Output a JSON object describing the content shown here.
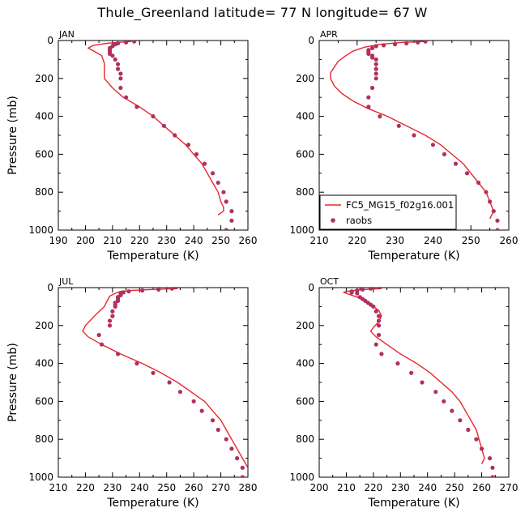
{
  "figure_title": "Thule_Greenland   latitude= 77 N longitude= 67 W",
  "colors": {
    "model": "#e8262e",
    "obs": "#b03060",
    "axis": "#000000"
  },
  "chart_data": [
    {
      "type": "line",
      "panel_label": "JAN",
      "xlabel": "Temperature (K)",
      "ylabel": "Pressure (mb)",
      "xlim": [
        190,
        260
      ],
      "ylim": [
        1000,
        0
      ],
      "xticks": [
        190,
        200,
        210,
        220,
        230,
        240,
        250,
        260
      ],
      "yticks": [
        0,
        200,
        400,
        600,
        800,
        1000
      ],
      "series": [
        {
          "mode": "line",
          "points": [
            [
              217,
              5
            ],
            [
              212,
              10
            ],
            [
              208,
              15
            ],
            [
              203,
              25
            ],
            [
              201,
              40
            ],
            [
              203,
              55
            ],
            [
              206,
              80
            ],
            [
              207,
              120
            ],
            [
              207,
              160
            ],
            [
              207,
              200
            ],
            [
              210,
              250
            ],
            [
              214,
              300
            ],
            [
              220,
              350
            ],
            [
              225,
              400
            ],
            [
              229,
              450
            ],
            [
              233,
              500
            ],
            [
              237,
              550
            ],
            [
              240,
              600
            ],
            [
              243,
              650
            ],
            [
              245,
              700
            ],
            [
              247,
              750
            ],
            [
              249,
              800
            ],
            [
              250,
              850
            ],
            [
              251,
              880
            ],
            [
              251,
              900
            ],
            [
              249,
              920
            ]
          ]
        },
        {
          "mode": "points",
          "points": [
            [
              218,
              5
            ],
            [
              215,
              10
            ],
            [
              212,
              15
            ],
            [
              211,
              20
            ],
            [
              210,
              30
            ],
            [
              209,
              40
            ],
            [
              209,
              50
            ],
            [
              209,
              60
            ],
            [
              209,
              70
            ],
            [
              210,
              80
            ],
            [
              211,
              100
            ],
            [
              212,
              125
            ],
            [
              212,
              150
            ],
            [
              213,
              175
            ],
            [
              213,
              200
            ],
            [
              213,
              250
            ],
            [
              215,
              300
            ],
            [
              219,
              350
            ],
            [
              225,
              400
            ],
            [
              229,
              450
            ],
            [
              233,
              500
            ],
            [
              238,
              550
            ],
            [
              241,
              600
            ],
            [
              244,
              650
            ],
            [
              247,
              700
            ],
            [
              249,
              750
            ],
            [
              251,
              800
            ],
            [
              252,
              850
            ],
            [
              254,
              900
            ],
            [
              254,
              950
            ],
            [
              252,
              1000
            ]
          ]
        }
      ]
    },
    {
      "type": "line",
      "panel_label": "APR",
      "xlabel": "Temperature (K)",
      "ylabel": "",
      "xlim": [
        210,
        260
      ],
      "ylim": [
        1000,
        0
      ],
      "xticks": [
        210,
        220,
        230,
        240,
        250,
        260
      ],
      "yticks": [
        0,
        200,
        400,
        600,
        800,
        1000
      ],
      "legend": {
        "placement": "lower-left-inside",
        "entries": [
          "FC5_MG15_f02g16.001",
          "raobs"
        ]
      },
      "series": [
        {
          "name": "FC5_MG15_f02g16.001",
          "mode": "line",
          "points": [
            [
              238,
              5
            ],
            [
              232,
              10
            ],
            [
              226,
              20
            ],
            [
              222,
              35
            ],
            [
              219,
              55
            ],
            [
              217,
              80
            ],
            [
              215,
              110
            ],
            [
              214,
              140
            ],
            [
              213,
              170
            ],
            [
              213,
              200
            ],
            [
              214,
              240
            ],
            [
              216,
              280
            ],
            [
              219,
              320
            ],
            [
              223,
              360
            ],
            [
              228,
              400
            ],
            [
              233,
              450
            ],
            [
              238,
              500
            ],
            [
              242,
              550
            ],
            [
              245,
              600
            ],
            [
              248,
              650
            ],
            [
              250,
              700
            ],
            [
              252,
              750
            ],
            [
              254,
              800
            ],
            [
              255,
              850
            ],
            [
              256,
              900
            ],
            [
              255,
              940
            ]
          ]
        },
        {
          "name": "raobs",
          "mode": "points",
          "points": [
            [
              238,
              5
            ],
            [
              236,
              10
            ],
            [
              233,
              15
            ],
            [
              230,
              20
            ],
            [
              227,
              25
            ],
            [
              225,
              30
            ],
            [
              224,
              40
            ],
            [
              223,
              50
            ],
            [
              223,
              60
            ],
            [
              223,
              70
            ],
            [
              224,
              80
            ],
            [
              224,
              90
            ],
            [
              225,
              100
            ],
            [
              225,
              125
            ],
            [
              225,
              150
            ],
            [
              225,
              175
            ],
            [
              225,
              200
            ],
            [
              224,
              250
            ],
            [
              223,
              300
            ],
            [
              223,
              350
            ],
            [
              226,
              400
            ],
            [
              231,
              450
            ],
            [
              235,
              500
            ],
            [
              240,
              550
            ],
            [
              243,
              600
            ],
            [
              246,
              650
            ],
            [
              249,
              700
            ],
            [
              252,
              750
            ],
            [
              254,
              800
            ],
            [
              255,
              850
            ],
            [
              256,
              900
            ],
            [
              257,
              950
            ],
            [
              257,
              1000
            ]
          ]
        }
      ]
    },
    {
      "type": "line",
      "panel_label": "JUL",
      "xlabel": "Temperature (K)",
      "ylabel": "Pressure (mb)",
      "xlim": [
        210,
        280
      ],
      "ylim": [
        1000,
        0
      ],
      "xticks": [
        210,
        220,
        230,
        240,
        250,
        260,
        270,
        280
      ],
      "yticks": [
        0,
        200,
        400,
        600,
        800,
        1000
      ],
      "series": [
        {
          "mode": "line",
          "points": [
            [
              254,
              5
            ],
            [
              245,
              10
            ],
            [
              237,
              15
            ],
            [
              233,
              20
            ],
            [
              231,
              30
            ],
            [
              229,
              45
            ],
            [
              228,
              70
            ],
            [
              227,
              100
            ],
            [
              224,
              140
            ],
            [
              222,
              170
            ],
            [
              220,
              200
            ],
            [
              219,
              230
            ],
            [
              221,
              260
            ],
            [
              226,
              300
            ],
            [
              233,
              350
            ],
            [
              241,
              400
            ],
            [
              248,
              450
            ],
            [
              254,
              500
            ],
            [
              259,
              550
            ],
            [
              264,
              600
            ],
            [
              267,
              650
            ],
            [
              270,
              700
            ],
            [
              272,
              750
            ],
            [
              274,
              800
            ],
            [
              276,
              850
            ],
            [
              278,
              900
            ],
            [
              280,
              950
            ]
          ]
        },
        {
          "mode": "points",
          "points": [
            [
              252,
              5
            ],
            [
              247,
              10
            ],
            [
              241,
              15
            ],
            [
              236,
              20
            ],
            [
              234,
              25
            ],
            [
              233,
              30
            ],
            [
              233,
              40
            ],
            [
              232,
              50
            ],
            [
              232,
              60
            ],
            [
              232,
              70
            ],
            [
              231,
              80
            ],
            [
              231,
              90
            ],
            [
              231,
              100
            ],
            [
              230,
              125
            ],
            [
              230,
              150
            ],
            [
              229,
              175
            ],
            [
              229,
              200
            ],
            [
              225,
              250
            ],
            [
              226,
              300
            ],
            [
              232,
              350
            ],
            [
              239,
              400
            ],
            [
              245,
              450
            ],
            [
              251,
              500
            ],
            [
              255,
              550
            ],
            [
              260,
              600
            ],
            [
              263,
              650
            ],
            [
              267,
              700
            ],
            [
              269,
              750
            ],
            [
              272,
              800
            ],
            [
              274,
              850
            ],
            [
              276,
              900
            ],
            [
              278,
              950
            ],
            [
              278,
              1000
            ]
          ]
        }
      ]
    },
    {
      "type": "line",
      "panel_label": "OCT",
      "xlabel": "Temperature (K)",
      "ylabel": "",
      "xlim": [
        200,
        270
      ],
      "ylim": [
        1000,
        0
      ],
      "xticks": [
        200,
        210,
        220,
        230,
        240,
        250,
        260,
        270
      ],
      "yticks": [
        0,
        200,
        400,
        600,
        800,
        1000
      ],
      "series": [
        {
          "mode": "line",
          "points": [
            [
              223,
              5
            ],
            [
              217,
              10
            ],
            [
              213,
              15
            ],
            [
              210,
              20
            ],
            [
              209,
              25
            ],
            [
              211,
              35
            ],
            [
              214,
              50
            ],
            [
              217,
              70
            ],
            [
              220,
              100
            ],
            [
              222,
              120
            ],
            [
              223,
              150
            ],
            [
              222,
              180
            ],
            [
              220,
              210
            ],
            [
              219,
              230
            ],
            [
              221,
              260
            ],
            [
              225,
              300
            ],
            [
              230,
              350
            ],
            [
              236,
              400
            ],
            [
              241,
              450
            ],
            [
              245,
              500
            ],
            [
              249,
              550
            ],
            [
              252,
              600
            ],
            [
              254,
              650
            ],
            [
              256,
              700
            ],
            [
              258,
              750
            ],
            [
              259,
              800
            ],
            [
              260,
              850
            ],
            [
              261,
              900
            ],
            [
              260,
              930
            ]
          ]
        },
        {
          "mode": "points",
          "points": [
            [
              219,
              5
            ],
            [
              216,
              10
            ],
            [
              214,
              15
            ],
            [
              212,
              20
            ],
            [
              212,
              25
            ],
            [
              214,
              30
            ],
            [
              215,
              50
            ],
            [
              216,
              60
            ],
            [
              217,
              70
            ],
            [
              218,
              80
            ],
            [
              219,
              90
            ],
            [
              220,
              100
            ],
            [
              221,
              125
            ],
            [
              222,
              150
            ],
            [
              222,
              175
            ],
            [
              222,
              200
            ],
            [
              222,
              250
            ],
            [
              221,
              300
            ],
            [
              223,
              350
            ],
            [
              229,
              400
            ],
            [
              234,
              450
            ],
            [
              238,
              500
            ],
            [
              243,
              550
            ],
            [
              246,
              600
            ],
            [
              249,
              650
            ],
            [
              252,
              700
            ],
            [
              255,
              750
            ],
            [
              258,
              800
            ],
            [
              260,
              850
            ],
            [
              263,
              900
            ],
            [
              264,
              950
            ],
            [
              264,
              1000
            ]
          ]
        }
      ]
    }
  ]
}
